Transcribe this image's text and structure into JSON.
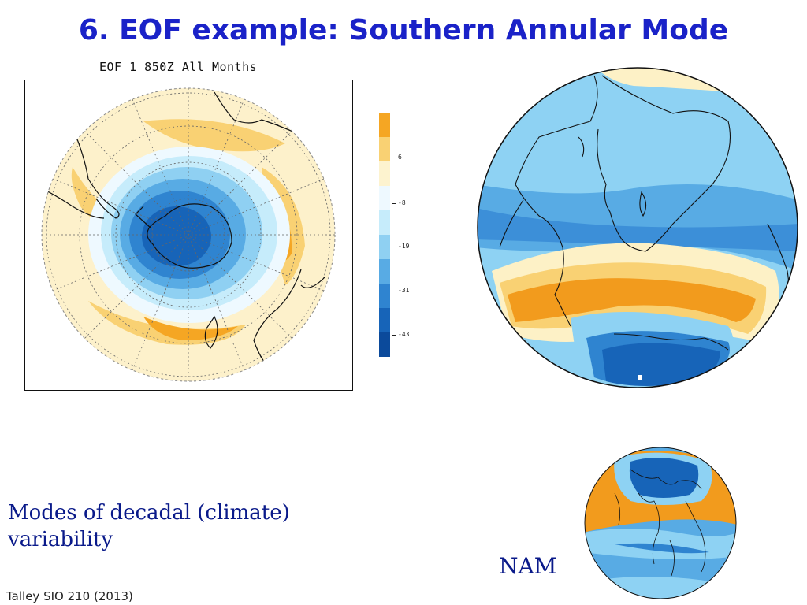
{
  "slide": {
    "title": "6. EOF example: Southern Annular Mode",
    "body_text": "Modes of decadal (climate) variability",
    "nam_label": "NAM",
    "footer": "Talley SIO 210 (2013)"
  },
  "polar_map": {
    "caption": "EOF 1 850Z All Months",
    "icon": "southern-hemisphere-polar-map"
  },
  "colorbar": {
    "tick_labels": [
      "6",
      "-8",
      "-19",
      "-31",
      "-43"
    ],
    "colors": [
      "#f5a623",
      "#f9d173",
      "#fdf3cf",
      "#eef9ff",
      "#c6ecfb",
      "#8fd0f2",
      "#58abe4",
      "#2f84d0",
      "#1764b8",
      "#0b4a9b"
    ]
  },
  "colors": {
    "title": "#1a22c8",
    "body_text": "#0a1a8a",
    "positive_strong": "#f29b1d",
    "positive_weak": "#fdf1c6",
    "negative_weak": "#8ed2f3",
    "negative_strong": "#1f5fb4"
  },
  "globes": {
    "large_icon": "south-atlantic-globe-sam",
    "small_icon": "northern-hemisphere-globe-nam"
  }
}
